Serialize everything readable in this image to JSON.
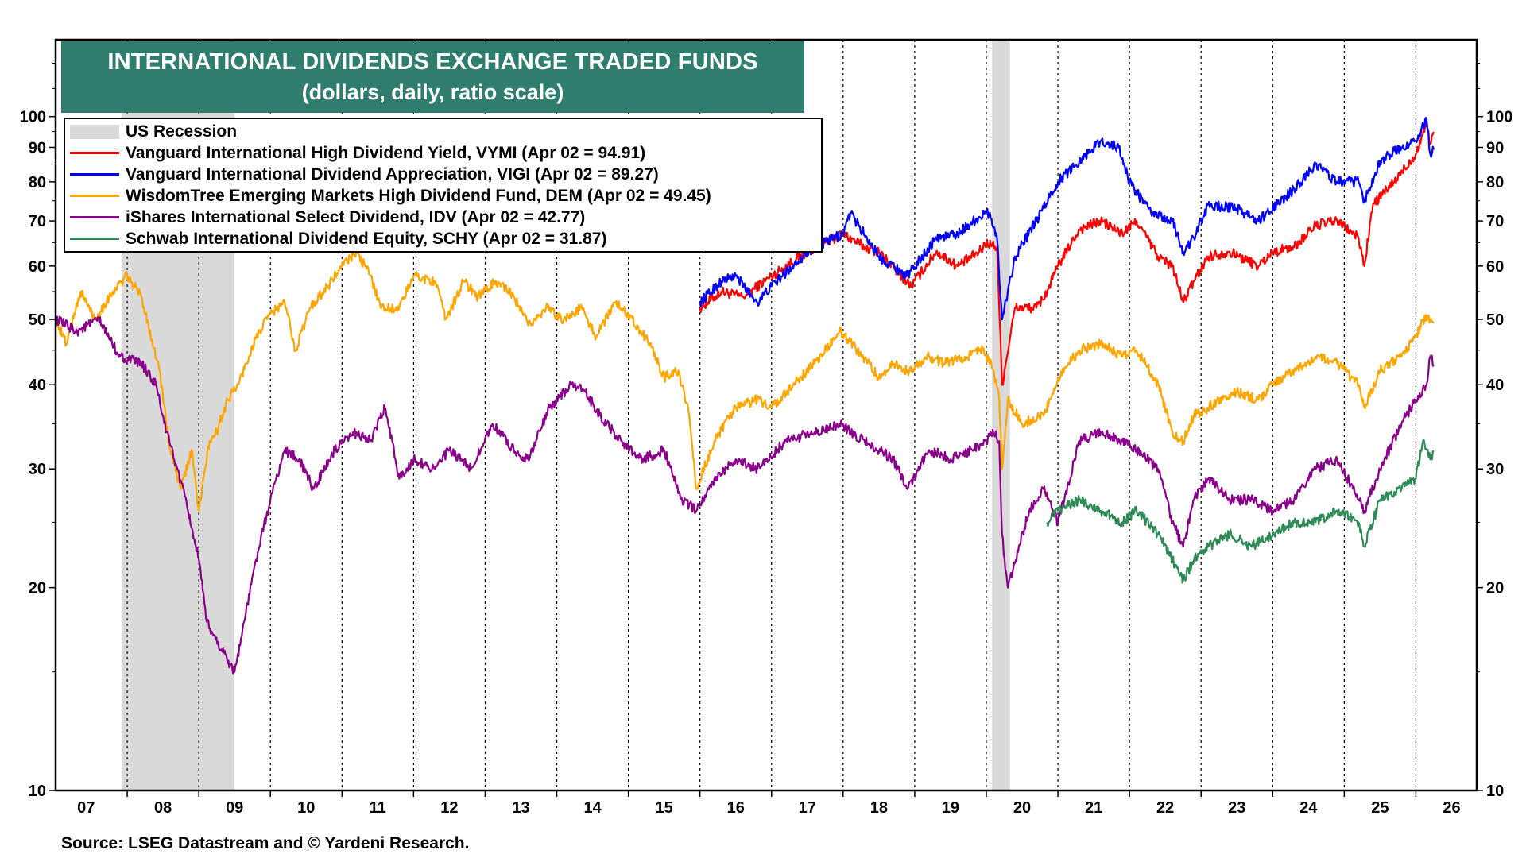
{
  "title": {
    "line1": "INTERNATIONAL DIVIDENDS EXCHANGE TRADED FUNDS",
    "line2": "(dollars, daily, ratio scale)"
  },
  "legend": {
    "recession": "US Recession",
    "items": [
      {
        "label": "Vanguard International High Dividend Yield, VYMI (Apr 02 = 94.91)",
        "color": "#ff0000"
      },
      {
        "label": "Vanguard International Dividend Appreciation, VIGI (Apr 02 = 89.27)",
        "color": "#0000ff"
      },
      {
        "label": "WisdomTree Emerging Markets High Dividend Fund, DEM (Apr 02 = 49.45)",
        "color": "#ffa500"
      },
      {
        "label": "iShares International Select Dividend, IDV (Apr 02 = 42.77)",
        "color": "#8b008b"
      },
      {
        "label": "Schwab International Dividend Equity, SCHY (Apr 02 = 31.87)",
        "color": "#2e8b57"
      }
    ]
  },
  "source": "Source: LSEG Datastream and © Yardeni Research.",
  "chart_data": {
    "type": "line",
    "yscale": "log",
    "ylim": [
      10,
      130
    ],
    "xlim": [
      2007.0,
      2026.85
    ],
    "y_ticks": [
      10,
      20,
      30,
      40,
      50,
      60,
      70,
      80,
      90,
      100
    ],
    "x_tick_labels": [
      "07",
      "08",
      "09",
      "10",
      "11",
      "12",
      "13",
      "14",
      "15",
      "16",
      "17",
      "18",
      "19",
      "20",
      "21",
      "22",
      "23",
      "24",
      "25",
      "26"
    ],
    "recessions": [
      [
        2007.92,
        2009.5
      ],
      [
        2020.08,
        2020.33
      ]
    ],
    "series": [
      {
        "name": "VYMI",
        "color": "#ff0000",
        "x": [
          2016.0,
          2016.3,
          2016.6,
          2017.0,
          2017.5,
          2018.0,
          2018.3,
          2018.5,
          2018.95,
          2019.3,
          2019.6,
          2019.9,
          2020.0,
          2020.15,
          2020.22,
          2020.4,
          2020.7,
          2020.85,
          2021.0,
          2021.3,
          2021.6,
          2021.9,
          2022.1,
          2022.4,
          2022.6,
          2022.75,
          2022.9,
          2023.1,
          2023.4,
          2023.8,
          2024.0,
          2024.3,
          2024.6,
          2024.9,
          2025.2,
          2025.28,
          2025.4,
          2025.7,
          2026.0,
          2026.15,
          2026.2,
          2026.25
        ],
        "y": [
          52,
          55,
          54,
          58,
          63,
          67,
          64,
          63,
          56,
          63,
          60,
          63,
          65,
          64,
          40,
          52,
          52,
          55,
          60,
          68,
          70,
          67,
          70,
          62,
          60,
          53,
          57,
          62,
          63,
          60,
          63,
          64,
          69,
          70,
          66,
          60,
          74,
          80,
          88,
          98,
          91,
          94.9
        ]
      },
      {
        "name": "VIGI",
        "color": "#0000ff",
        "x": [
          2016.0,
          2016.3,
          2016.5,
          2016.8,
          2017.0,
          2017.5,
          2018.0,
          2018.1,
          2018.5,
          2018.9,
          2019.3,
          2019.6,
          2019.9,
          2020.05,
          2020.15,
          2020.22,
          2020.4,
          2020.7,
          2021.0,
          2021.3,
          2021.6,
          2021.85,
          2022.0,
          2022.3,
          2022.6,
          2022.75,
          2022.9,
          2023.1,
          2023.5,
          2023.8,
          2024.0,
          2024.3,
          2024.6,
          2024.9,
          2025.2,
          2025.28,
          2025.5,
          2025.8,
          2026.0,
          2026.15,
          2026.2,
          2026.25
        ],
        "y": [
          53,
          57,
          58,
          53,
          56,
          63,
          67,
          72,
          62,
          58,
          66,
          67,
          71,
          72,
          66,
          50,
          62,
          70,
          80,
          86,
          92,
          90,
          80,
          72,
          70,
          63,
          66,
          74,
          73,
          70,
          73,
          78,
          85,
          80,
          80,
          75,
          86,
          90,
          92,
          99,
          88,
          89.3
        ]
      },
      {
        "name": "DEM",
        "color": "#ffa500",
        "x": [
          2007.0,
          2007.15,
          2007.35,
          2007.55,
          2007.8,
          2008.0,
          2008.2,
          2008.45,
          2008.6,
          2008.75,
          2008.9,
          2009.0,
          2009.15,
          2009.25,
          2009.4,
          2009.55,
          2009.8,
          2010.0,
          2010.2,
          2010.35,
          2010.55,
          2010.8,
          2011.0,
          2011.2,
          2011.4,
          2011.55,
          2011.8,
          2012.0,
          2012.3,
          2012.45,
          2012.7,
          2012.9,
          2013.15,
          2013.4,
          2013.6,
          2013.85,
          2014.1,
          2014.35,
          2014.55,
          2014.8,
          2015.0,
          2015.3,
          2015.5,
          2015.7,
          2015.85,
          2015.95,
          2016.2,
          2016.5,
          2016.8,
          2017.0,
          2017.3,
          2017.6,
          2017.95,
          2018.2,
          2018.5,
          2018.7,
          2018.9,
          2019.2,
          2019.4,
          2019.7,
          2019.95,
          2020.1,
          2020.18,
          2020.22,
          2020.3,
          2020.5,
          2020.8,
          2021.0,
          2021.3,
          2021.6,
          2021.9,
          2022.1,
          2022.4,
          2022.6,
          2022.75,
          2022.9,
          2023.1,
          2023.5,
          2023.8,
          2024.0,
          2024.3,
          2024.6,
          2024.9,
          2025.2,
          2025.28,
          2025.5,
          2025.8,
          2026.0,
          2026.1,
          2026.2,
          2026.25
        ],
        "y": [
          50,
          46,
          55,
          50,
          55,
          58,
          54,
          42,
          32,
          28,
          32,
          26,
          33,
          34,
          38,
          40,
          47,
          51,
          53,
          45,
          52,
          56,
          60,
          63,
          58,
          52,
          52,
          58,
          57,
          50,
          57,
          54,
          57,
          54,
          49,
          52,
          50,
          52,
          47,
          53,
          51,
          46,
          41,
          42,
          36,
          28,
          33,
          37,
          38,
          37,
          40,
          43,
          48,
          45,
          41,
          43,
          42,
          44,
          43,
          44,
          45,
          42,
          38,
          30,
          38,
          35,
          36,
          41,
          45,
          46,
          44,
          45,
          40,
          34,
          33,
          36,
          37,
          39,
          38,
          40,
          42,
          44,
          43,
          40,
          37,
          42,
          44,
          47,
          50,
          50,
          49.4
        ]
      },
      {
        "name": "IDV",
        "color": "#8b008b",
        "x": [
          2007.0,
          2007.3,
          2007.6,
          2007.9,
          2008.2,
          2008.4,
          2008.55,
          2008.7,
          2008.85,
          2009.0,
          2009.1,
          2009.2,
          2009.35,
          2009.5,
          2009.8,
          2010.0,
          2010.2,
          2010.4,
          2010.6,
          2010.9,
          2011.2,
          2011.4,
          2011.6,
          2011.8,
          2012.0,
          2012.3,
          2012.5,
          2012.8,
          2013.1,
          2013.4,
          2013.6,
          2013.9,
          2014.2,
          2014.4,
          2014.6,
          2014.9,
          2015.2,
          2015.5,
          2015.75,
          2015.95,
          2016.2,
          2016.5,
          2016.8,
          2017.2,
          2017.6,
          2017.95,
          2018.3,
          2018.7,
          2018.9,
          2019.2,
          2019.5,
          2019.8,
          2020.0,
          2020.1,
          2020.18,
          2020.22,
          2020.3,
          2020.6,
          2020.8,
          2021.0,
          2021.3,
          2021.6,
          2021.9,
          2022.1,
          2022.4,
          2022.6,
          2022.75,
          2022.9,
          2023.1,
          2023.4,
          2023.7,
          2024.0,
          2024.3,
          2024.6,
          2024.9,
          2025.2,
          2025.28,
          2025.5,
          2025.8,
          2026.0,
          2026.15,
          2026.2,
          2026.25
        ],
        "y": [
          50,
          48,
          50,
          44,
          43,
          40,
          34,
          30,
          26,
          22,
          18,
          17,
          16,
          15,
          22,
          27,
          32,
          31,
          28,
          32,
          34,
          33,
          37,
          29,
          31,
          30,
          32,
          30,
          35,
          32,
          31,
          37,
          40,
          39,
          36,
          33,
          31,
          32,
          27,
          26,
          29,
          31,
          30,
          33,
          34,
          35,
          33,
          31,
          28,
          32,
          31,
          32,
          33,
          34,
          33,
          24,
          20,
          26,
          28,
          25,
          33,
          34,
          33,
          32,
          30,
          25,
          23,
          27,
          29,
          27,
          27,
          26,
          27,
          30,
          31,
          27,
          26,
          30,
          35,
          38,
          40,
          44,
          42.8
        ]
      },
      {
        "name": "SCHY",
        "color": "#2e8b57",
        "x": [
          2020.85,
          2021.0,
          2021.3,
          2021.6,
          2021.9,
          2022.1,
          2022.4,
          2022.6,
          2022.75,
          2022.9,
          2023.1,
          2023.4,
          2023.7,
          2024.0,
          2024.3,
          2024.6,
          2024.9,
          2025.2,
          2025.28,
          2025.5,
          2025.8,
          2026.0,
          2026.1,
          2026.2,
          2026.25
        ],
        "y": [
          25,
          26,
          27,
          26,
          25,
          26,
          24,
          22,
          20.5,
          22,
          23,
          24,
          23,
          24,
          25,
          25,
          26,
          25,
          23,
          27,
          28,
          29,
          33,
          31,
          31.9
        ]
      }
    ]
  }
}
